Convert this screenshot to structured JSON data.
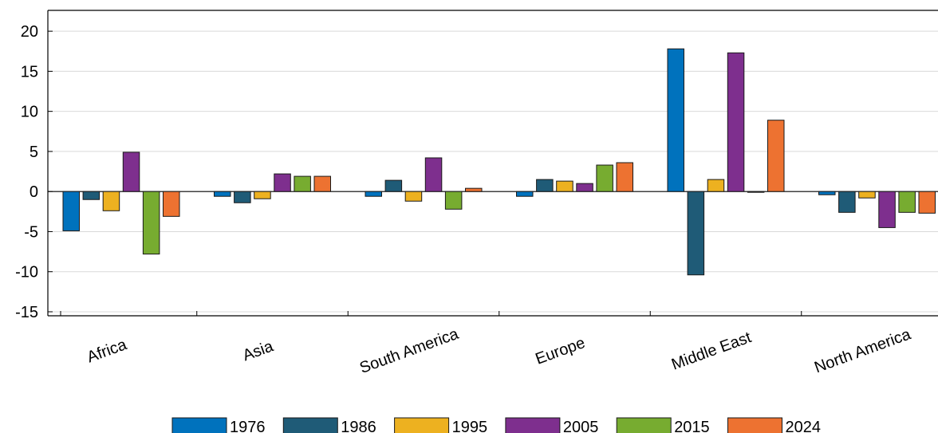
{
  "chart_data": {
    "type": "bar",
    "title": "",
    "xlabel": "",
    "ylabel": "",
    "categories": [
      "Africa",
      "Asia",
      "South America",
      "Europe",
      "Middle East",
      "North America"
    ],
    "ylim": [
      -15.5,
      22.6
    ],
    "yticks": [
      20,
      15,
      10,
      5,
      0,
      -5,
      -10,
      -15
    ],
    "grid": "horizontal",
    "legend_position": "bottom",
    "series": [
      {
        "name": "1976",
        "color": "#0072BD",
        "values": [
          -4.9,
          -0.6,
          -0.6,
          -0.6,
          17.8,
          -0.4
        ]
      },
      {
        "name": "1986",
        "color": "#1F5B77",
        "values": [
          -1.0,
          -1.4,
          1.4,
          1.5,
          -10.4,
          -2.6
        ]
      },
      {
        "name": "1995",
        "color": "#EDB120",
        "values": [
          -2.4,
          -0.9,
          -1.2,
          1.3,
          1.5,
          -0.8
        ]
      },
      {
        "name": "2005",
        "color": "#7E2F8E",
        "values": [
          4.9,
          2.2,
          4.2,
          1.0,
          17.3,
          -4.5
        ]
      },
      {
        "name": "2015",
        "color": "#77AC30",
        "values": [
          -7.8,
          1.9,
          -2.2,
          3.3,
          -0.1,
          -2.6
        ]
      },
      {
        "name": "2024",
        "color": "#ED7231",
        "values": [
          -3.1,
          1.9,
          0.4,
          3.6,
          8.9,
          -2.7
        ]
      }
    ]
  }
}
